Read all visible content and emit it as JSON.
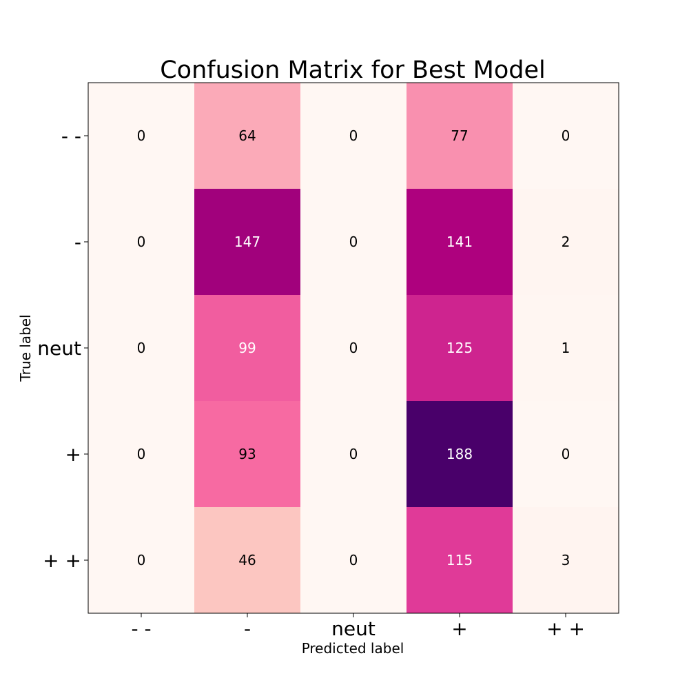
{
  "chart_data": {
    "type": "heatmap",
    "title": "Confusion Matrix for Best Model",
    "xlabel": "Predicted label",
    "ylabel": "True label",
    "x_categories": [
      "- -",
      "-",
      "neut",
      "+",
      "+ +"
    ],
    "y_categories": [
      "- -",
      "-",
      "neut",
      "+",
      "+ +"
    ],
    "values": [
      [
        0,
        64,
        0,
        77,
        0
      ],
      [
        0,
        147,
        0,
        141,
        2
      ],
      [
        0,
        99,
        0,
        125,
        1
      ],
      [
        0,
        93,
        0,
        188,
        0
      ],
      [
        0,
        46,
        0,
        115,
        3
      ]
    ],
    "colormap": "RdPu",
    "value_range": [
      0,
      188
    ],
    "colors": {
      "low": "#fff7f3",
      "high": "#49006a",
      "text_dark": "#000000",
      "text_light": "#ffffff"
    },
    "grid": false,
    "colorbar": false
  }
}
